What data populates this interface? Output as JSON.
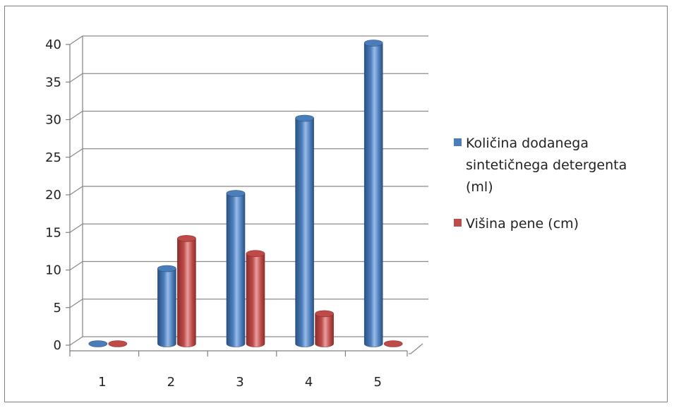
{
  "chart_data": {
    "type": "bar",
    "style": "3d-cylinder",
    "categories": [
      "1",
      "2",
      "3",
      "4",
      "5"
    ],
    "series": [
      {
        "name": "Količina dodanega sintetičnega detergenta (ml)",
        "values": [
          0,
          10,
          20,
          30,
          40
        ]
      },
      {
        "name": "Višina pene (cm)",
        "values": [
          0,
          14,
          12,
          4,
          0
        ]
      }
    ],
    "ylim": [
      0,
      40
    ],
    "y_ticks": [
      "0",
      "5",
      "10",
      "15",
      "20",
      "25",
      "30",
      "35",
      "40"
    ],
    "y_tick_values": [
      0,
      5,
      10,
      15,
      20,
      25,
      30,
      35,
      40
    ],
    "grid": true,
    "legend_position": "right",
    "legend_lines": [
      [
        "Količina dodanega",
        "sintetičnega detergenta",
        "(ml)"
      ],
      [
        "Višina pene (cm)"
      ]
    ],
    "colors": {
      "series_fill": [
        "#4a7ebb",
        "#be4b48"
      ],
      "series_light": [
        "#9bbbe8",
        "#e8a0a0"
      ],
      "series_dark": [
        "#2c5182",
        "#8a2e2c"
      ],
      "gridline": "#8a8a8a"
    }
  }
}
